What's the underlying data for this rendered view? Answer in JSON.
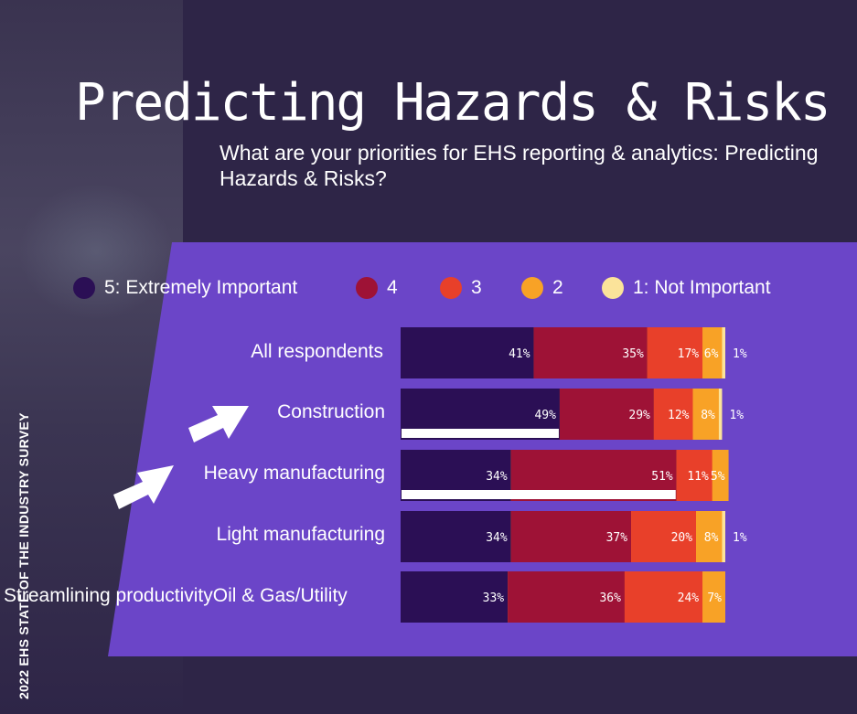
{
  "title": "Predicting Hazards & Risks",
  "subtitle": "What are your priorities for EHS reporting & analytics: Predicting Hazards & Risks?",
  "side_text": "2022 EHS STATE OF THE INDUSTRY SURVEY",
  "colors": {
    "background": "#2e2547",
    "panel": "#6b45c8",
    "seg5": "#2b0f55",
    "seg4": "#9e1236",
    "seg3": "#e8402a",
    "seg2": "#f8a226",
    "seg1": "#fbe39a"
  },
  "legend": [
    {
      "label": "5: Extremely Important",
      "color": "#2b0f55"
    },
    {
      "label": "4",
      "color": "#9e1236"
    },
    {
      "label": "3",
      "color": "#e8402a"
    },
    {
      "label": "2",
      "color": "#f8a226"
    },
    {
      "label": "1: Not Important",
      "color": "#fbe39a"
    }
  ],
  "icons": [
    "arrow-right-icon",
    "arrow-right-icon"
  ],
  "chart_data": {
    "type": "bar",
    "orientation": "horizontal",
    "stacked": true,
    "categories": [
      "All respondents",
      "Construction",
      "Heavy manufacturing",
      "Light manufacturing",
      "Streamlining productivityOil & Gas/Utility"
    ],
    "series": [
      {
        "name": "5: Extremely Important",
        "values": [
          41,
          49,
          34,
          34,
          33
        ],
        "labels": [
          "41%",
          "49%",
          "34%",
          "34%",
          "33%"
        ]
      },
      {
        "name": "4",
        "values": [
          35,
          29,
          51,
          37,
          36
        ],
        "labels": [
          "35%",
          "29%",
          "51%",
          "37%",
          "36%"
        ]
      },
      {
        "name": "3",
        "values": [
          17,
          12,
          11,
          20,
          24
        ],
        "labels": [
          "17%",
          "12%",
          "11%",
          "20%",
          "24%"
        ]
      },
      {
        "name": "2",
        "values": [
          6,
          8,
          5,
          8,
          7
        ],
        "labels": [
          "6%",
          "8%",
          "5%",
          "8%",
          "7%"
        ]
      },
      {
        "name": "1: Not Important",
        "values": [
          1,
          1,
          0,
          1,
          0
        ],
        "labels": [
          "1%",
          "1%",
          "",
          "1%",
          ""
        ]
      }
    ],
    "highlighted_categories": [
      "Construction",
      "Heavy manufacturing"
    ],
    "legend_position": "top",
    "grid": false
  }
}
